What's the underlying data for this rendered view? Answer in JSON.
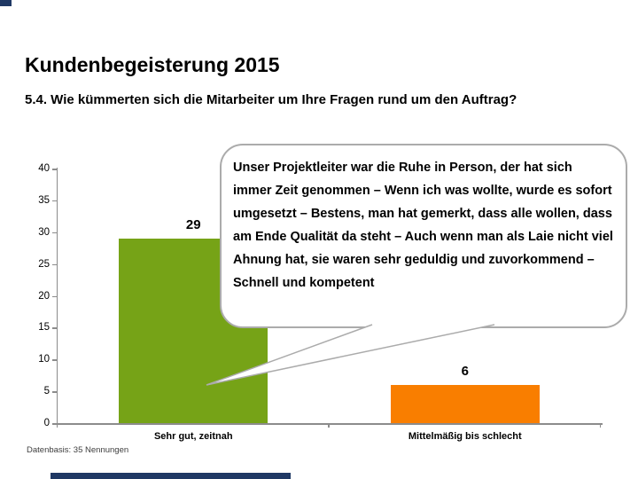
{
  "slide": {
    "title": "Kundenbegeisterung 2015",
    "subtitle": "5.4. Wie kümmerten sich die Mitarbeiter um Ihre Fragen rund um den Auftrag?",
    "footnote": "Datenbasis: 35 Nennungen"
  },
  "speech_bubble": {
    "text": "Unser Projektleiter war die Ruhe in Person, der hat sich immer Zeit genommen – Wenn ich was wollte, wurde es sofort umgesetzt – Bestens, man hat gemerkt, dass alle wollen, dass am Ende Qualität da steht – Auch wenn man als Laie nicht viel Ahnung hat, sie waren sehr geduldig und zuvorkommend – Schnell und kompetent"
  },
  "chart_data": {
    "type": "bar",
    "categories": [
      "Sehr gut, zeitnah",
      "Mittelmäßig bis schlecht"
    ],
    "values": [
      29,
      6
    ],
    "bar_colors": [
      "#76A317",
      "#F97E00"
    ],
    "title": "",
    "xlabel": "",
    "ylabel": "",
    "ylim": [
      0,
      40
    ],
    "yticks": [
      0,
      5,
      10,
      15,
      20,
      25,
      30,
      35,
      40
    ],
    "grid": false,
    "legend": false,
    "value_labels": true
  },
  "colors": {
    "axis": "#8C8C8C",
    "bubble_border": "#ABABAB",
    "accent_bar": "#1F3864",
    "footnote_text": "#3D3D3D"
  }
}
